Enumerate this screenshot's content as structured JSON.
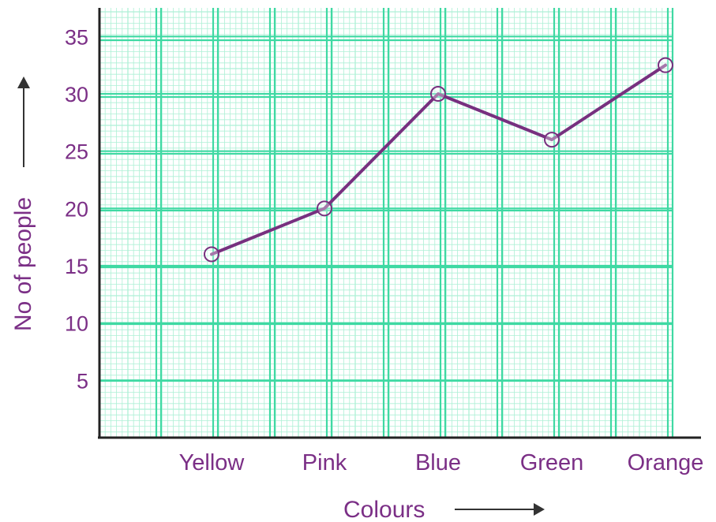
{
  "chart_data": {
    "type": "line",
    "categories": [
      "Yellow",
      "Pink",
      "Blue",
      "Green",
      "Orange"
    ],
    "values": [
      16,
      20,
      30,
      26,
      32.5
    ],
    "xlabel": "Colours",
    "ylabel": "No of people",
    "yticks": [
      5,
      10,
      15,
      20,
      25,
      30,
      35
    ],
    "ylim": [
      0,
      37.5
    ],
    "grid": true,
    "marker": "hollow-circle",
    "colors": {
      "line": "#77307f",
      "text": "#7b2f86",
      "grid_major": "#3fd9a3",
      "grid_minor": "#aef0d6",
      "axes": "#222222",
      "arrows": "#333333"
    }
  }
}
